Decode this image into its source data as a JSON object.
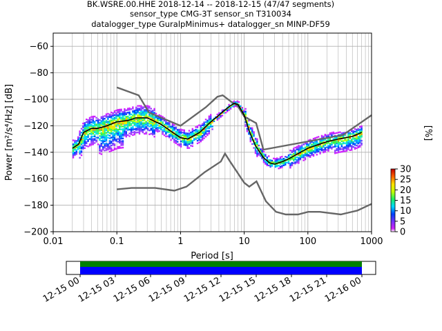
{
  "title_lines": [
    "BK.WSRE.00.HHE   2018-12-14 -- 2018-12-15  (47/47 segments)",
    "sensor_type CMG-3T sensor_sn T310034",
    "datalogger_type GuralpMinimus+ datalogger_sn MINP-DF59"
  ],
  "chart_data": {
    "type": "ppsd",
    "xlabel": "Period [s]",
    "ylabel": "Power [m²/s⁴/Hz] [dB]",
    "xscale": "log",
    "xlim": [
      0.01,
      1000
    ],
    "ylim": [
      -200,
      -50
    ],
    "x_ticks": [
      0.01,
      0.1,
      1,
      10,
      100,
      1000
    ],
    "x_tick_labels": [
      "0.01",
      "0.1",
      "1",
      "10",
      "100",
      "1000"
    ],
    "y_ticks": [
      -200,
      -180,
      -160,
      -140,
      -120,
      -100,
      -80,
      -60
    ],
    "y_tick_labels": [
      "−200",
      "−180",
      "−160",
      "−140",
      "−120",
      "−100",
      "−80",
      "−60"
    ],
    "grid": true,
    "mode_curve": {
      "name": "mode",
      "x": [
        0.02,
        0.025,
        0.03,
        0.04,
        0.05,
        0.07,
        0.1,
        0.15,
        0.2,
        0.3,
        0.5,
        0.7,
        1,
        1.3,
        2,
        3,
        4,
        5,
        6,
        7,
        8,
        10,
        12,
        15,
        20,
        25,
        30,
        40,
        50,
        70,
        100,
        150,
        200,
        300,
        500,
        700
      ],
      "y": [
        -137,
        -134,
        -125,
        -122,
        -122,
        -120,
        -117,
        -116,
        -114,
        -114,
        -119,
        -124,
        -129,
        -130,
        -125,
        -117,
        -112,
        -108,
        -105,
        -103,
        -104,
        -112,
        -124,
        -135,
        -144,
        -148,
        -149,
        -147,
        -145,
        -141,
        -137,
        -134,
        -132,
        -130,
        -128,
        -125
      ]
    },
    "noise_models": {
      "nhnm": {
        "x": [
          0.1,
          0.22,
          0.32,
          1,
          2.5,
          3.8,
          4.6,
          6.3,
          7.9,
          10,
          15.4,
          20,
          354.8,
          1000
        ],
        "y": [
          -91,
          -97,
          -110,
          -120,
          -106,
          -98,
          -97,
          -102,
          -105,
          -113,
          -118,
          -138,
          -127,
          -112
        ]
      },
      "nlnm": {
        "x": [
          0.1,
          0.17,
          0.4,
          0.8,
          1.24,
          2.4,
          4.3,
          5,
          6,
          10,
          12,
          15.6,
          21.9,
          31.6,
          45,
          70,
          101,
          154,
          328,
          600,
          1000
        ],
        "y": [
          -168,
          -167,
          -167,
          -169,
          -166,
          -155,
          -147,
          -141,
          -147,
          -163,
          -166,
          -162,
          -177,
          -185,
          -187,
          -187,
          -185,
          -185,
          -187,
          -184,
          -179
        ]
      }
    },
    "density_color_scale": {
      "label": "[%]",
      "range": [
        0,
        30
      ],
      "ticks": [
        0,
        5,
        10,
        15,
        20,
        25,
        30
      ]
    }
  },
  "coverage": {
    "tick_labels": [
      "12-15 00",
      "12-15 03",
      "12-15 06",
      "12-15 09",
      "12-15 12",
      "12-15 15",
      "12-15 18",
      "12-15 21",
      "12-16 00"
    ]
  },
  "colors": {
    "mode": "#000000",
    "noise_model": "#666666",
    "coverage_top": "#008000",
    "coverage_bottom": "#0000ff",
    "grid": "#b0b0b0"
  }
}
